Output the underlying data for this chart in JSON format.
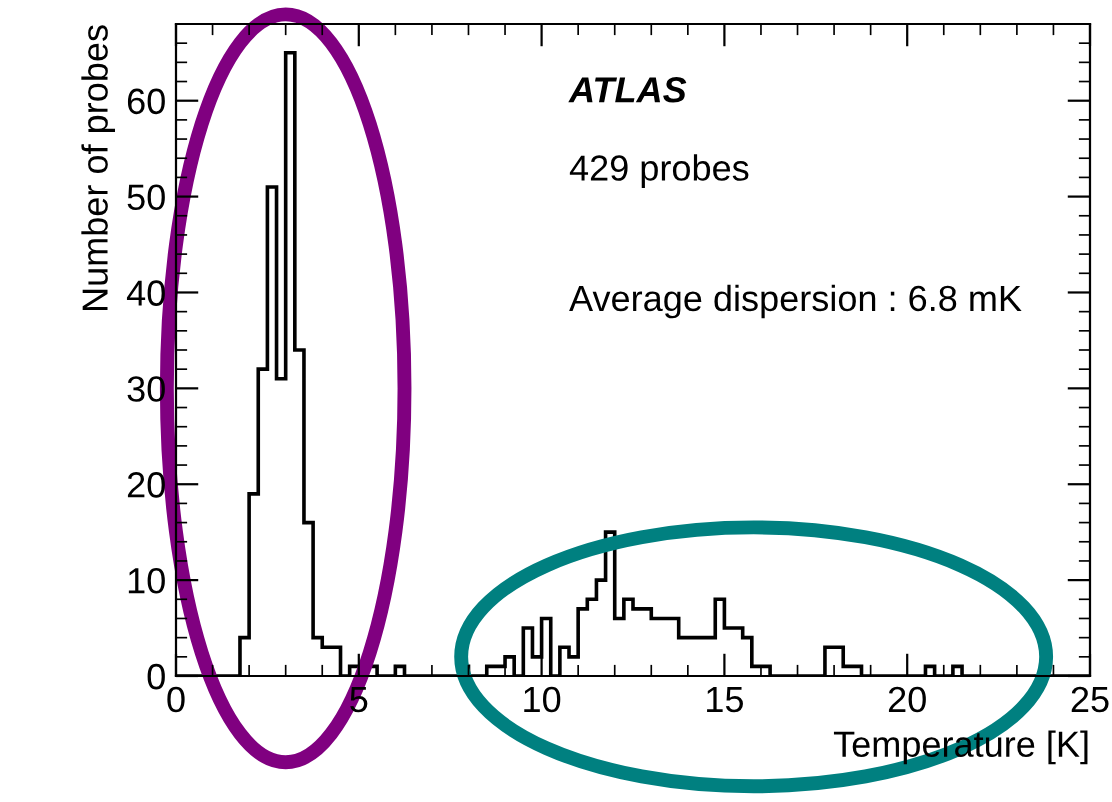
{
  "chart_data": {
    "type": "histogram",
    "xlabel": "Temperature [K]",
    "ylabel": "Number of probes",
    "annotations": [
      "ATLAS",
      "429 probes",
      "Average dispersion : 6.8 mK"
    ],
    "bins": [
      0,
      0.25,
      0.5,
      0.75,
      1,
      1.25,
      1.5,
      1.75,
      2,
      2.25,
      2.5,
      2.75,
      3,
      3.25,
      3.5,
      3.75,
      4,
      4.25,
      4.5,
      4.75,
      5,
      5.25,
      5.5,
      5.75,
      6,
      6.25,
      6.5,
      6.75,
      7,
      7.25,
      7.5,
      7.75,
      8,
      8.25,
      8.5,
      8.75,
      9,
      9.25,
      9.5,
      9.75,
      10,
      10.25,
      10.5,
      10.75,
      11,
      11.25,
      11.5,
      11.75,
      12,
      12.25,
      12.5,
      12.75,
      13,
      13.25,
      13.5,
      13.75,
      14,
      14.25,
      14.5,
      14.75,
      15,
      15.25,
      15.5,
      15.75,
      16,
      16.25,
      16.5,
      16.75,
      17,
      17.25,
      17.5,
      17.75,
      18,
      18.25,
      18.5,
      18.75,
      19,
      19.25,
      19.5,
      19.75,
      20,
      20.25,
      20.5,
      20.75,
      21,
      21.25,
      21.5,
      21.75,
      22,
      22.25,
      22.5,
      22.75,
      23,
      23.25,
      23.5,
      23.75,
      24,
      24.25,
      24.5,
      24.75,
      25
    ],
    "values": [
      0,
      0,
      0,
      0,
      0,
      0,
      0,
      4,
      19,
      32,
      51,
      31,
      65,
      34,
      16,
      4,
      3,
      3,
      0,
      1,
      1,
      1,
      0,
      0,
      1,
      0,
      0,
      0,
      0,
      0,
      0,
      1,
      0,
      0,
      1,
      1,
      2,
      0,
      5,
      2,
      6,
      0,
      3,
      2,
      7,
      8,
      10,
      15,
      6,
      8,
      7,
      7,
      6,
      6,
      6,
      4,
      4,
      4,
      4,
      8,
      5,
      5,
      4,
      1,
      1,
      0,
      0,
      0,
      0,
      0,
      0,
      3,
      3,
      1,
      1,
      0,
      0,
      0,
      0,
      0,
      0,
      0,
      1,
      0,
      0,
      1,
      0,
      0,
      0,
      0,
      0,
      0,
      0,
      0,
      0,
      0,
      0,
      0,
      0,
      0
    ],
    "color": "#000000",
    "xlim": [
      0,
      25
    ],
    "ylim": [
      0,
      68
    ],
    "xticks": [
      0,
      5,
      10,
      15,
      20,
      25
    ],
    "yticks": [
      0,
      10,
      20,
      30,
      40,
      50,
      60
    ],
    "grid": false
  }
}
